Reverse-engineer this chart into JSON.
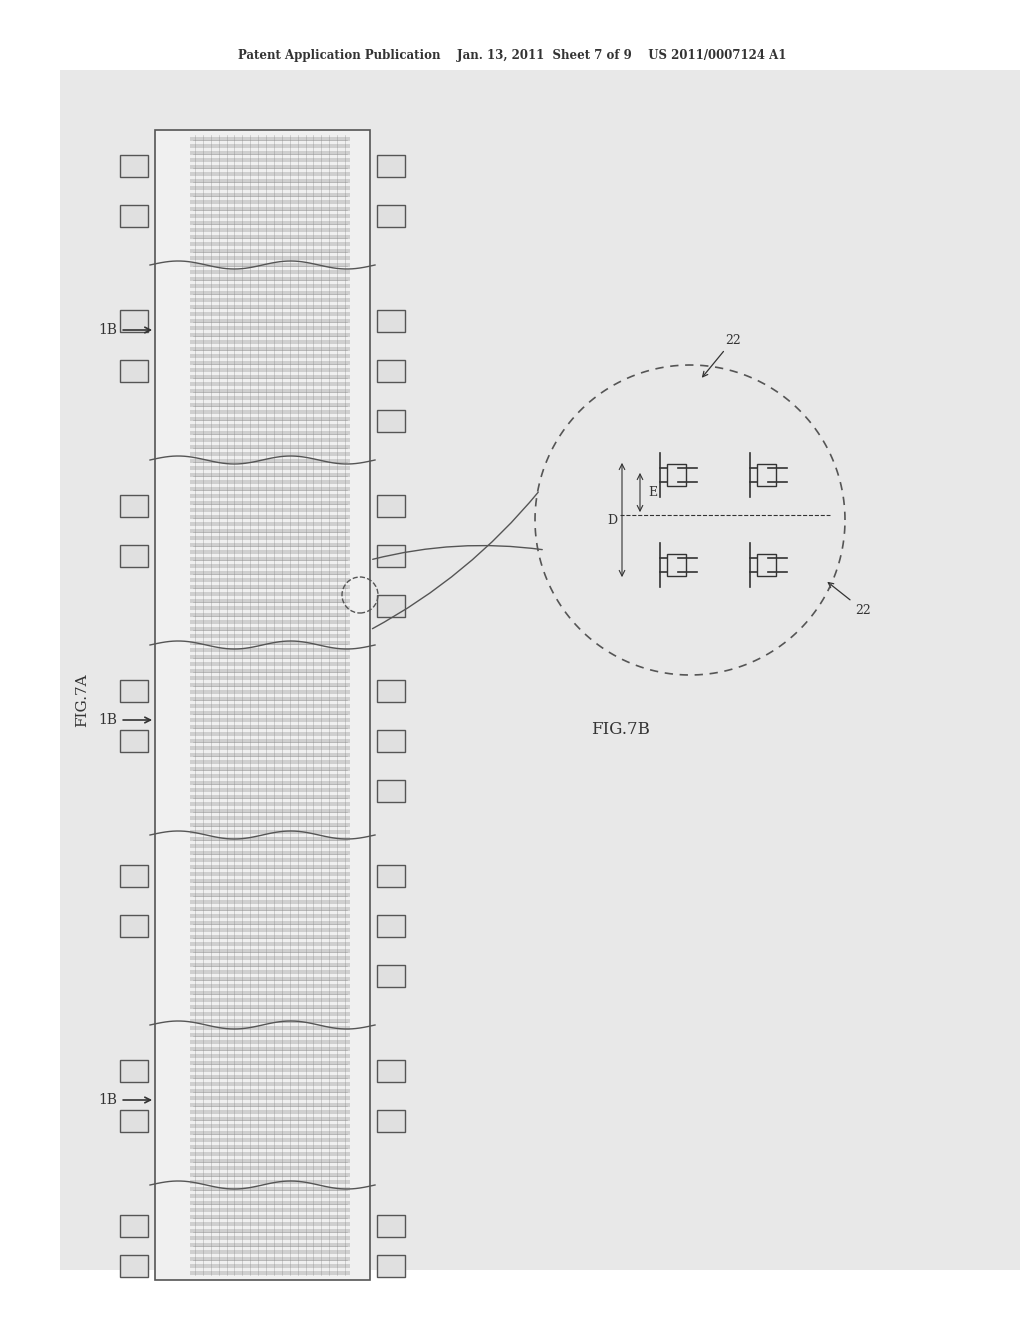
{
  "bg_color": "#e8e8e8",
  "fig_bg": "#ffffff",
  "header_text": "Patent Application Publication    Jan. 13, 2011  Sheet 7 of 9    US 2011/0007124 A1",
  "fig7a_label": "FIG.7A",
  "fig7b_label": "FIG.7B",
  "label_1b": "1B",
  "label_22": "22",
  "label_D": "D",
  "label_E": "E"
}
